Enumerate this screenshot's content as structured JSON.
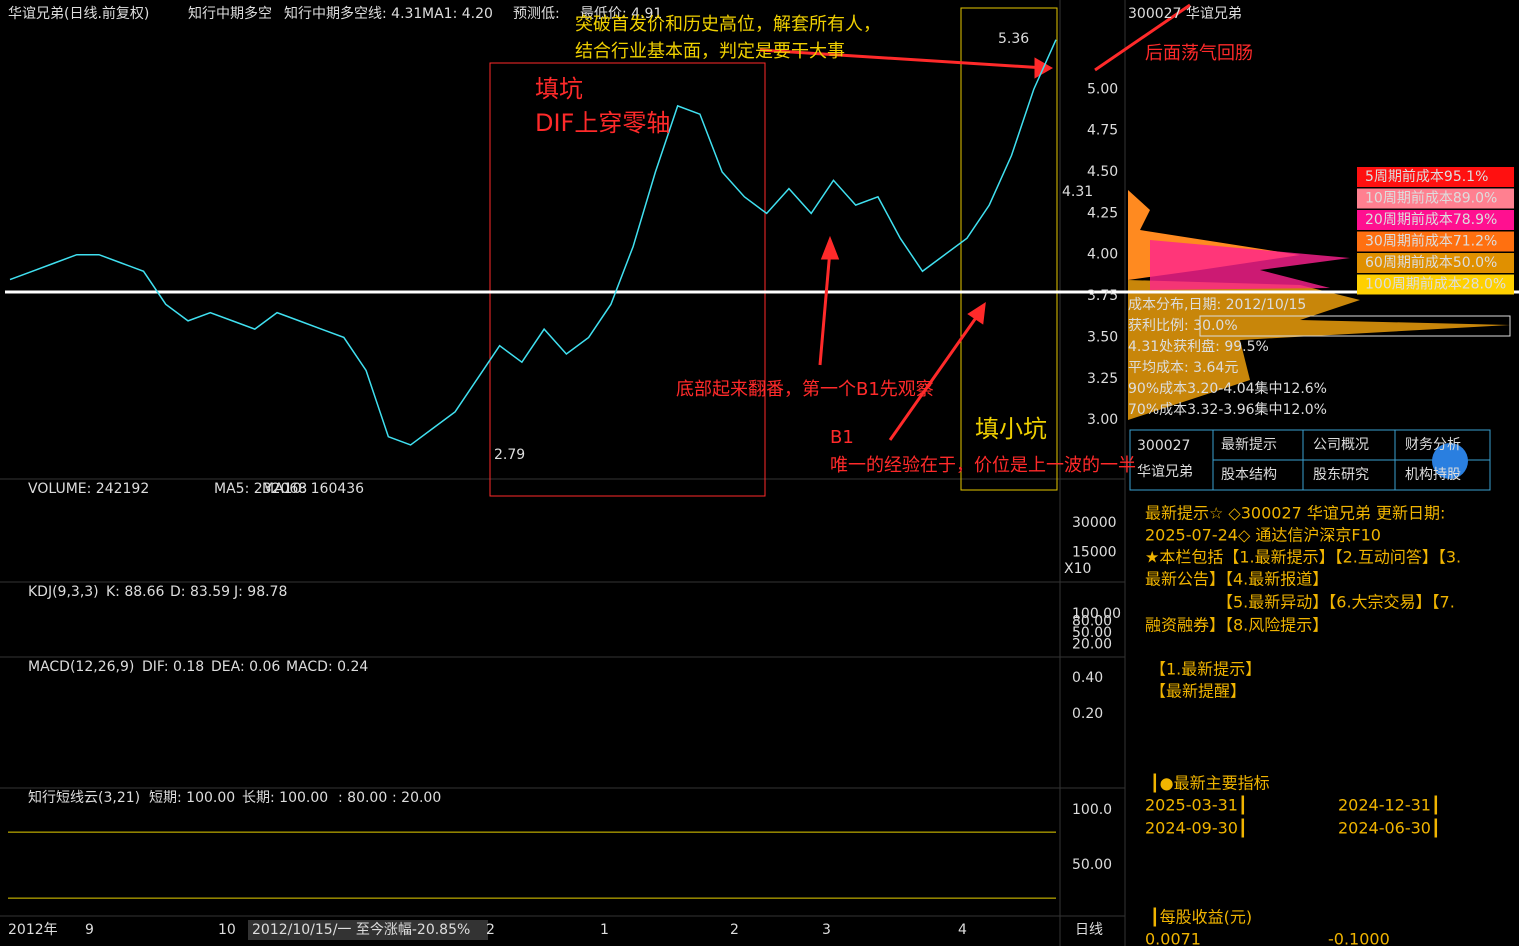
{
  "header": {
    "items": [
      {
        "text": "华谊兄弟(日线.前复权)",
        "color": "#dddddd"
      },
      {
        "text": "知行中期多空",
        "color": "#dddddd"
      },
      {
        "text": "知行中期多空线: 4.31",
        "color": "#dddddd"
      },
      {
        "text": "MA1: 4.20",
        "color": "#e6c700"
      },
      {
        "text": "预测低:",
        "color": "#e040e0"
      },
      {
        "text": "最低价: 4.91",
        "color": "#20e020"
      }
    ]
  },
  "chart_data": {
    "type": "line",
    "color": "#40e0f0",
    "values": [
      3.85,
      3.9,
      3.95,
      4.0,
      4.0,
      3.95,
      3.9,
      3.7,
      3.6,
      3.65,
      3.6,
      3.55,
      3.65,
      3.6,
      3.55,
      3.5,
      3.3,
      2.9,
      2.85,
      2.95,
      3.05,
      3.25,
      3.45,
      3.35,
      3.55,
      3.4,
      3.5,
      3.7,
      4.05,
      4.5,
      4.9,
      4.85,
      4.5,
      4.35,
      4.25,
      4.4,
      4.25,
      4.45,
      4.3,
      4.35,
      4.1,
      3.9,
      4.0,
      4.1,
      4.3,
      4.6,
      5.0,
      5.3
    ],
    "ylim": [
      2.65,
      5.51
    ],
    "yticks": [
      {
        "value": 5,
        "label": "5.00"
      },
      {
        "value": 4.75,
        "label": "4.75"
      },
      {
        "value": 4.5,
        "label": "4.50"
      },
      {
        "value": 4.25,
        "label": "4.25"
      },
      {
        "value": 4,
        "label": "4.00"
      },
      {
        "value": 3.75,
        "label": "3.75"
      },
      {
        "value": 3.5,
        "label": "3.50"
      },
      {
        "value": 3.25,
        "label": "3.25"
      },
      {
        "value": 3,
        "label": "3.00"
      }
    ],
    "last_price": "4.31",
    "high_label": "5.36",
    "low_label": "2.79"
  },
  "annotations": [
    "突破首发价和历史高位，解套所有人，",
    "结合行业基本面，判定是要干大事",
    "后面荡气回肠",
    "填坑",
    "DIF上穿零轴",
    "底部起来翻番，第一个B1先观察",
    "B1",
    "唯一的经验在于，价位是上一波的一半",
    "填小坑"
  ],
  "cost_legend": [
    {
      "label": "5周期前成本95.1%",
      "color": "#ff1010"
    },
    {
      "label": "10周期前成本89.0%",
      "color": "#ff8090"
    },
    {
      "label": "20周期前成本78.9%",
      "color": "#ff1090"
    },
    {
      "label": "30周期前成本71.2%",
      "color": "#ff7010"
    },
    {
      "label": "60周期前成本50.0%",
      "color": "#e09000"
    },
    {
      "label": "100周期前成本28.0%",
      "color": "#ffd000"
    }
  ],
  "chip_info": [
    "成本分布,日期: 2012/10/15",
    "获利比例: 30.0%",
    "4.31处获利盘: 99.5%",
    "平均成本: 3.64元",
    "90%成本3.20-4.04集中12.6%",
    "70%成本3.32-3.96集中12.0%"
  ],
  "volume": {
    "labels": [
      "VOLUME: 242192",
      "MA5: 232068",
      "MA10: 160436"
    ],
    "ylim": [
      0,
      51700
    ],
    "yticks": [
      30000,
      15000
    ],
    "unit": "X10"
  },
  "kdj": {
    "labels": [
      "KDJ(9,3,3)",
      "K: 88.66",
      "D: 83.59",
      "J: 98.78"
    ],
    "ylim": [
      -12,
      180
    ],
    "yticks": [
      {
        "value": 100,
        "label": "100.00"
      },
      {
        "value": 80,
        "label": "80.00"
      },
      {
        "value": 50,
        "label": "50.00"
      },
      {
        "value": 20,
        "label": "20.00"
      }
    ]
  },
  "macd": {
    "labels": [
      "MACD(12,26,9)",
      "DIF: 0.18",
      "DEA: 0.06",
      "MACD: 0.24"
    ],
    "ylim": [
      -0.21,
      0.51
    ],
    "yticks": [
      {
        "value": 0.4,
        "label": "0.40"
      },
      {
        "value": 0.2,
        "label": "0.20"
      }
    ]
  },
  "cloud": {
    "labels": [
      "知行短线云(3,21)",
      "短期: 100.00",
      "长期: 100.00",
      ": 80.00",
      ": 20.00"
    ],
    "ylim": [
      3.8,
      119.2
    ],
    "yticks": [
      {
        "value": 100,
        "label": "100.0"
      },
      {
        "value": 50,
        "label": "50.00"
      }
    ],
    "levels": [
      80,
      20
    ]
  },
  "x_axis": [
    "2012年",
    "9",
    "10",
    "2012/10/15/一   至今涨幅-20.85%",
    "2",
    "1",
    "2",
    "3",
    "4",
    "日线"
  ],
  "side": {
    "title": "300027 华谊兄弟",
    "code": "300027",
    "name": "华谊兄弟",
    "buttons": [
      "最新提示",
      "公司概况",
      "财务分析",
      "股本结构",
      "股东研究",
      "机构持股"
    ],
    "lines": [
      "最新提示☆ ◇300027 华谊兄弟 更新日期:",
      "2025-07-24◇ 通达信沪深京F10",
      "★本栏包括【1.最新提示】【2.互动问答】【3.",
      "最新公告】【4.最新报道】",
      "　　　　　【5.最新异动】【6.大宗交易】【7.",
      "融资融券】【8.风险提示】",
      "【1.最新提示】",
      "【最新提醒】",
      "┃●最新主要指标",
      "2025-03-31┃",
      "2024-12-31┃",
      "2024-09-30┃",
      "2024-06-30┃",
      "┃每股收益(元)",
      "0.0071",
      "-0.1000"
    ]
  }
}
